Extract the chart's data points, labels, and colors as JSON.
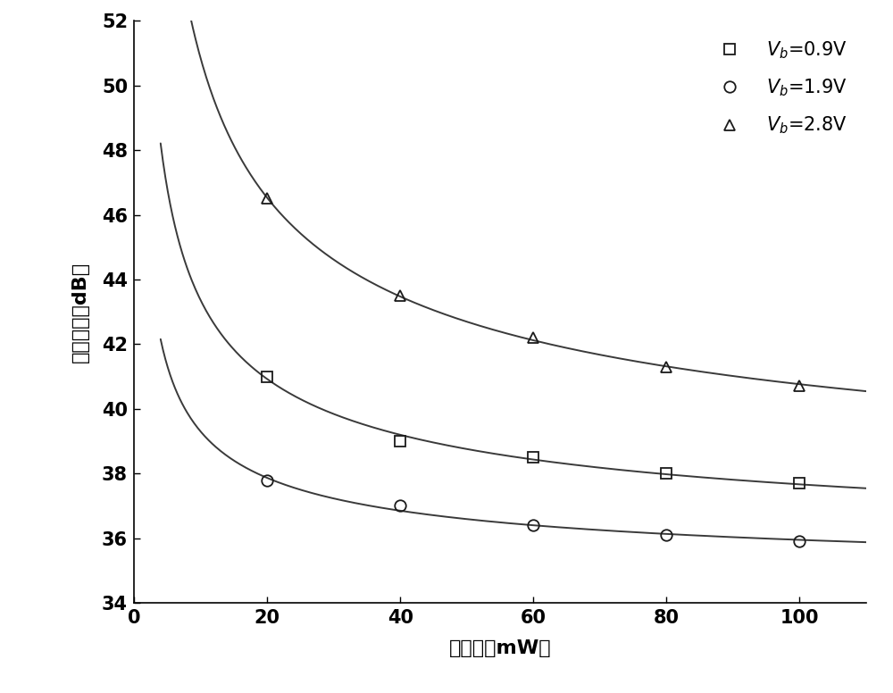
{
  "xlabel": "光功率（mW）",
  "ylabel": "噪声系数（dB）",
  "xlim": [
    0,
    110
  ],
  "ylim": [
    34,
    52
  ],
  "xticks": [
    0,
    20,
    40,
    60,
    80,
    100
  ],
  "yticks": [
    34,
    36,
    38,
    40,
    42,
    44,
    46,
    48,
    50,
    52
  ],
  "series": [
    {
      "marker": "s",
      "x_data": [
        20,
        40,
        60,
        80,
        100
      ],
      "y_data": [
        41.0,
        39.0,
        38.5,
        38.0,
        37.7
      ],
      "legend_label": "$\\mathit{V}_b$=0.9V"
    },
    {
      "marker": "o",
      "x_data": [
        20,
        40,
        60,
        80,
        100
      ],
      "y_data": [
        37.8,
        37.0,
        36.4,
        36.1,
        35.9
      ],
      "legend_label": "$\\mathit{V}_b$=1.9V"
    },
    {
      "marker": "^",
      "x_data": [
        20,
        40,
        60,
        80,
        100
      ],
      "y_data": [
        46.5,
        43.5,
        42.2,
        41.3,
        40.7
      ],
      "legend_label": "$\\mathit{V}_b$=2.8V"
    }
  ],
  "line_color": "#3a3a3a",
  "marker_facecolor": "none",
  "marker_edge_color": "#1a1a1a",
  "marker_size": 9,
  "marker_linewidth": 1.3,
  "line_width": 1.4,
  "legend_fontsize": 15,
  "axis_label_fontsize": 16,
  "tick_fontsize": 15,
  "background_color": "#ffffff",
  "figure_width": 10.0,
  "figure_height": 7.76
}
